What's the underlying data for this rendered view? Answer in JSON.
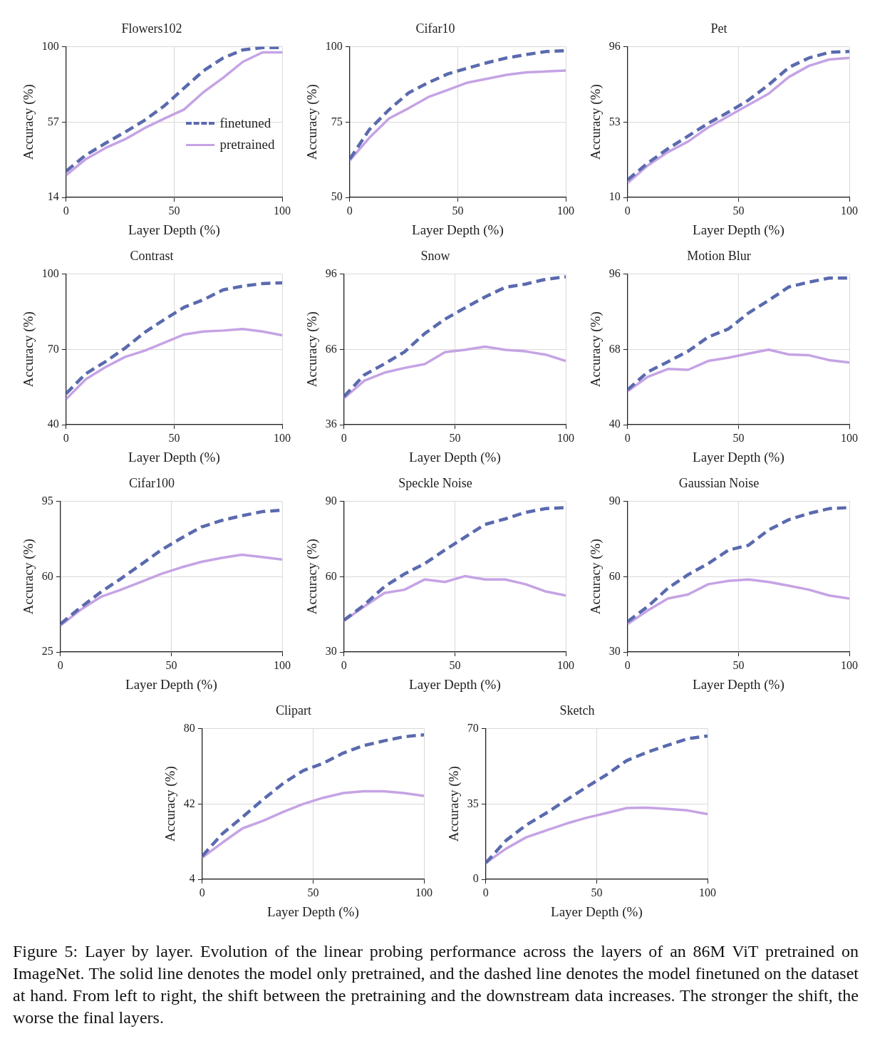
{
  "chart_data": [
    {
      "type": "line",
      "title": "Flowers102",
      "xlabel": "Layer Depth (%)",
      "ylabel": "Accuracy (%)",
      "x": [
        0,
        9.1,
        18.2,
        27.3,
        36.4,
        45.5,
        54.5,
        63.6,
        72.7,
        81.8,
        90.9,
        100
      ],
      "xlim": [
        0,
        100
      ],
      "xticks": [
        0,
        50,
        100
      ],
      "ylim": [
        14,
        100
      ],
      "yticks": [
        14,
        57,
        100
      ],
      "grid": true,
      "legend": "right",
      "marker": "none",
      "series": [
        {
          "name": "finetuned",
          "color": "#5a6aae",
          "line_style": "dashed",
          "values": [
            29.0,
            38.1,
            44.9,
            51.3,
            58.1,
            66.3,
            76.3,
            86.3,
            93.6,
            98.2,
            99.5,
            99.5
          ]
        },
        {
          "name": "pretrained",
          "color": "#c5a3e4",
          "line_style": "solid",
          "values": [
            26.7,
            35.8,
            42.2,
            47.2,
            53.6,
            59.0,
            64.1,
            74.1,
            82.3,
            91.4,
            96.8,
            96.8
          ]
        }
      ]
    },
    {
      "type": "line",
      "title": "Cifar10",
      "xlabel": "Layer Depth (%)",
      "ylabel": "Accuracy (%)",
      "x": [
        0,
        9.1,
        18.2,
        27.3,
        36.4,
        45.5,
        54.5,
        63.6,
        72.7,
        81.8,
        90.9,
        100
      ],
      "xlim": [
        0,
        100
      ],
      "xticks": [
        0,
        50,
        100
      ],
      "ylim": [
        50,
        100
      ],
      "yticks": [
        50,
        75,
        100
      ],
      "grid": true,
      "marker": "none",
      "series": [
        {
          "color": "#5a6aae",
          "line_style": "dashed",
          "values": [
            62.7,
            72.5,
            79.1,
            84.7,
            88.1,
            91.0,
            92.9,
            94.7,
            96.3,
            97.4,
            98.4,
            98.7
          ]
        },
        {
          "color": "#c5a3e4",
          "line_style": "solid",
          "values": [
            62.2,
            69.8,
            76.2,
            79.6,
            83.3,
            85.7,
            88.1,
            89.4,
            90.7,
            91.5,
            91.8,
            92.1
          ]
        }
      ]
    },
    {
      "type": "line",
      "title": "Pet",
      "xlabel": "Layer Depth (%)",
      "ylabel": "Accuracy (%)",
      "x": [
        0,
        9.1,
        18.2,
        27.3,
        36.4,
        45.5,
        54.5,
        63.6,
        72.7,
        81.8,
        90.9,
        100
      ],
      "xlim": [
        0,
        100
      ],
      "xticks": [
        0,
        50,
        100
      ],
      "ylim": [
        10,
        96
      ],
      "yticks": [
        10,
        53,
        96
      ],
      "grid": true,
      "marker": "none",
      "series": [
        {
          "color": "#5a6aae",
          "line_style": "dashed",
          "values": [
            20.0,
            29.6,
            37.8,
            45.0,
            52.3,
            58.7,
            65.5,
            74.2,
            84.2,
            89.6,
            92.8,
            93.3
          ]
        },
        {
          "color": "#c5a3e4",
          "line_style": "solid",
          "values": [
            18.2,
            28.2,
            35.9,
            41.9,
            50.0,
            56.4,
            62.8,
            69.2,
            78.7,
            85.1,
            88.7,
            89.6
          ]
        }
      ]
    },
    {
      "type": "line",
      "title": "Contrast",
      "xlabel": "Layer Depth (%)",
      "ylabel": "Accuracy (%)",
      "x": [
        0,
        9.1,
        18.2,
        27.3,
        36.4,
        45.5,
        54.5,
        63.6,
        72.7,
        81.8,
        90.9,
        100
      ],
      "xlim": [
        0,
        100
      ],
      "xticks": [
        0,
        50,
        100
      ],
      "ylim": [
        40,
        100
      ],
      "yticks": [
        40,
        70,
        100
      ],
      "grid": true,
      "marker": "none",
      "series": [
        {
          "color": "#5a6aae",
          "line_style": "dashed",
          "values": [
            52.4,
            60.3,
            65.1,
            70.5,
            76.8,
            81.9,
            86.7,
            89.8,
            93.7,
            95.2,
            96.2,
            96.5
          ]
        },
        {
          "color": "#c5a3e4",
          "line_style": "solid",
          "values": [
            50.2,
            58.1,
            62.9,
            67.0,
            69.5,
            72.7,
            75.9,
            77.1,
            77.5,
            78.1,
            77.1,
            75.6
          ]
        }
      ]
    },
    {
      "type": "line",
      "title": "Snow",
      "xlabel": "Layer Depth (%)",
      "ylabel": "Accuracy (%)",
      "x": [
        0,
        9.1,
        18.2,
        27.3,
        36.4,
        45.5,
        54.5,
        63.6,
        72.7,
        81.8,
        90.9,
        100
      ],
      "xlim": [
        0,
        100
      ],
      "xticks": [
        0,
        50,
        100
      ],
      "ylim": [
        36,
        96
      ],
      "yticks": [
        36,
        66,
        96
      ],
      "grid": true,
      "marker": "none",
      "series": [
        {
          "color": "#5a6aae",
          "line_style": "dashed",
          "values": [
            47.2,
            55.8,
            60.2,
            65.0,
            72.3,
            78.0,
            82.5,
            86.9,
            90.7,
            92.0,
            93.9,
            94.9
          ]
        },
        {
          "color": "#c5a3e4",
          "line_style": "solid",
          "values": [
            46.5,
            53.5,
            56.7,
            58.6,
            60.1,
            64.9,
            65.8,
            67.1,
            65.8,
            65.2,
            63.9,
            61.4
          ]
        }
      ]
    },
    {
      "type": "line",
      "title": "Motion Blur",
      "xlabel": "Layer Depth (%)",
      "ylabel": "Accuracy (%)",
      "x": [
        0,
        9.1,
        18.2,
        27.3,
        36.4,
        45.5,
        54.5,
        63.6,
        72.7,
        81.8,
        90.9,
        100
      ],
      "xlim": [
        0,
        100
      ],
      "xticks": [
        0,
        50,
        100
      ],
      "ylim": [
        40,
        96
      ],
      "yticks": [
        40,
        68,
        96
      ],
      "grid": true,
      "marker": "none",
      "series": [
        {
          "color": "#5a6aae",
          "line_style": "dashed",
          "values": [
            53.0,
            59.6,
            63.4,
            67.3,
            72.6,
            75.6,
            81.5,
            86.2,
            91.2,
            93.0,
            94.5,
            94.5
          ]
        },
        {
          "color": "#c5a3e4",
          "line_style": "solid",
          "values": [
            52.4,
            57.8,
            60.7,
            60.4,
            63.7,
            64.9,
            66.4,
            67.9,
            66.1,
            65.8,
            64.0,
            63.1
          ]
        }
      ]
    },
    {
      "type": "line",
      "title": "Cifar100",
      "xlabel": "Layer Depth (%)",
      "ylabel": "Accuracy (%)",
      "x": [
        0,
        9.1,
        18.2,
        27.3,
        36.4,
        45.5,
        54.5,
        63.6,
        72.7,
        81.8,
        90.9,
        100
      ],
      "xlim": [
        0,
        100
      ],
      "xticks": [
        0,
        50,
        100
      ],
      "ylim": [
        25,
        95
      ],
      "yticks": [
        25,
        60,
        95
      ],
      "grid": true,
      "marker": "none",
      "series": [
        {
          "color": "#5a6aae",
          "line_style": "dashed",
          "values": [
            38.0,
            45.7,
            52.8,
            59.1,
            65.7,
            72.4,
            77.9,
            83.1,
            86.1,
            88.3,
            90.2,
            90.9
          ]
        },
        {
          "color": "#c5a3e4",
          "line_style": "solid",
          "values": [
            37.3,
            44.6,
            50.6,
            53.9,
            57.6,
            61.3,
            64.3,
            66.9,
            68.7,
            70.2,
            69.1,
            68.0
          ]
        }
      ]
    },
    {
      "type": "line",
      "title": "Speckle Noise",
      "xlabel": "Layer Depth (%)",
      "ylabel": "Accuracy (%)",
      "x": [
        0,
        9.1,
        18.2,
        27.3,
        36.4,
        45.5,
        54.5,
        63.6,
        72.7,
        81.8,
        90.9,
        100
      ],
      "xlim": [
        0,
        100
      ],
      "xticks": [
        0,
        50,
        100
      ],
      "ylim": [
        30,
        90
      ],
      "yticks": [
        30,
        60,
        90
      ],
      "grid": true,
      "marker": "none",
      "series": [
        {
          "color": "#5a6aae",
          "line_style": "dashed",
          "values": [
            42.7,
            48.7,
            56.0,
            61.1,
            65.2,
            70.6,
            75.7,
            80.8,
            83.0,
            85.6,
            87.1,
            87.5
          ]
        },
        {
          "color": "#c5a3e4",
          "line_style": "solid",
          "values": [
            42.4,
            48.1,
            53.5,
            54.8,
            58.9,
            57.9,
            60.2,
            58.9,
            58.9,
            57.0,
            54.1,
            52.5
          ]
        }
      ]
    },
    {
      "type": "line",
      "title": "Gaussian Noise",
      "xlabel": "Layer Depth (%)",
      "ylabel": "Accuracy (%)",
      "x": [
        0,
        9.1,
        18.2,
        27.3,
        36.4,
        45.5,
        54.5,
        63.6,
        72.7,
        81.8,
        90.9,
        100
      ],
      "xlim": [
        0,
        100
      ],
      "xticks": [
        0,
        50,
        100
      ],
      "ylim": [
        30,
        90
      ],
      "yticks": [
        30,
        60,
        90
      ],
      "grid": true,
      "marker": "none",
      "series": [
        {
          "color": "#5a6aae",
          "line_style": "dashed",
          "values": [
            42.1,
            48.1,
            55.4,
            60.8,
            65.2,
            70.6,
            72.5,
            78.6,
            82.7,
            85.2,
            87.1,
            87.5
          ]
        },
        {
          "color": "#c5a3e4",
          "line_style": "solid",
          "values": [
            41.1,
            46.5,
            51.3,
            52.9,
            57.0,
            58.3,
            58.9,
            57.9,
            56.4,
            54.8,
            52.5,
            51.3
          ]
        }
      ]
    },
    {
      "type": "line",
      "title": "Clipart",
      "xlabel": "Layer Depth (%)",
      "ylabel": "Accuracy (%)",
      "x": [
        0,
        9.1,
        18.2,
        27.3,
        36.4,
        45.5,
        54.5,
        63.6,
        72.7,
        81.8,
        90.9,
        100
      ],
      "xlim": [
        0,
        100
      ],
      "xticks": [
        0,
        50,
        100
      ],
      "ylim": [
        4,
        80
      ],
      "yticks": [
        4,
        42,
        80
      ],
      "grid": true,
      "marker": "none",
      "series": [
        {
          "color": "#5a6aae",
          "line_style": "dashed",
          "values": [
            15.7,
            27.0,
            35.4,
            44.1,
            52.3,
            58.8,
            62.5,
            67.7,
            71.4,
            73.8,
            75.9,
            76.9
          ]
        },
        {
          "color": "#c5a3e4",
          "line_style": "solid",
          "values": [
            14.9,
            22.5,
            29.7,
            33.4,
            37.9,
            42.0,
            45.1,
            47.5,
            48.4,
            48.4,
            47.5,
            46.1
          ]
        }
      ]
    },
    {
      "type": "line",
      "title": "Sketch",
      "xlabel": "Layer Depth (%)",
      "ylabel": "Accuracy (%)",
      "x": [
        0,
        9.1,
        18.2,
        27.3,
        36.4,
        45.5,
        54.5,
        63.6,
        72.7,
        81.8,
        90.9,
        100
      ],
      "xlim": [
        0,
        100
      ],
      "xticks": [
        0,
        50,
        100
      ],
      "ylim": [
        0,
        70
      ],
      "yticks": [
        0,
        35,
        70
      ],
      "grid": true,
      "marker": "none",
      "annotations": [
        "Figure 5: Layer by layer. Evolution of the linear probing performance across the layers of an 86M ViT pretrained on ImageNet. The solid line denotes the model only pretrained, and the dashed line denotes the model finetuned on the dataset at hand. From left to right, the shift between the pretraining and the downstream data increases. The stronger the shift, the worse the final layers."
      ],
      "series": [
        {
          "color": "#5a6aae",
          "line_style": "dashed",
          "values": [
            7.6,
            18.0,
            25.2,
            30.8,
            36.9,
            42.9,
            48.6,
            55.2,
            59.0,
            62.2,
            65.3,
            66.6
          ]
        },
        {
          "color": "#c5a3e4",
          "line_style": "solid",
          "values": [
            7.6,
            14.2,
            19.5,
            22.7,
            25.9,
            28.6,
            30.8,
            33.1,
            33.3,
            32.7,
            32.0,
            30.3
          ]
        }
      ]
    }
  ]
}
